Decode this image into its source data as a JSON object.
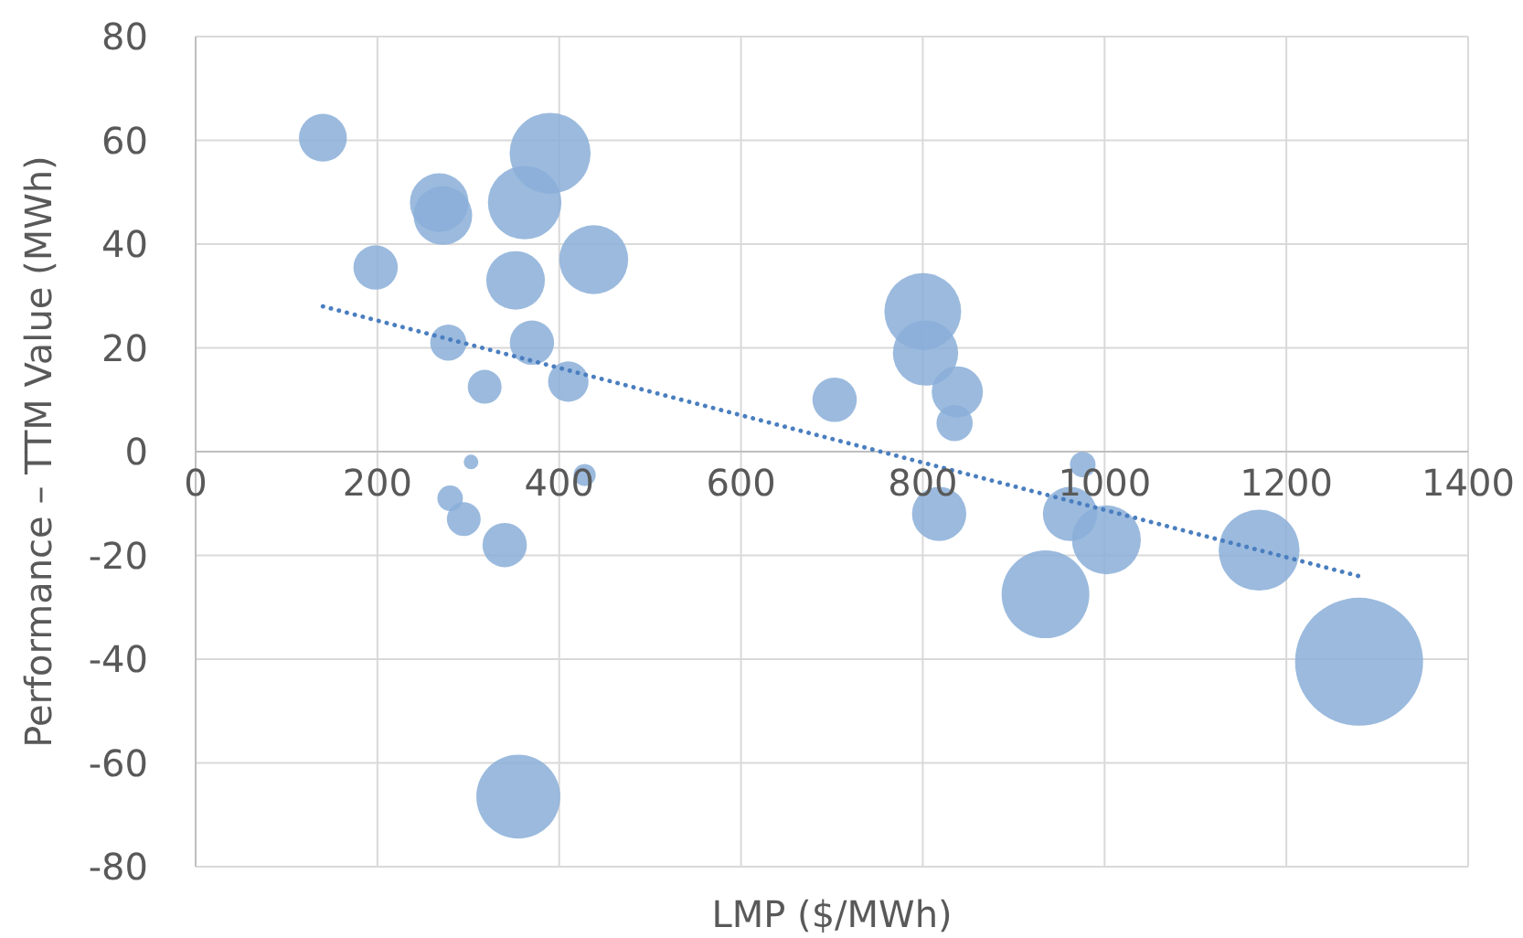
{
  "chart_data": {
    "type": "bubble",
    "xlabel": "LMP ($/MWh)",
    "ylabel": "Performance – TTM Value (MWh)",
    "xlim": [
      0,
      1400
    ],
    "xticks": [
      0,
      200,
      400,
      600,
      800,
      1000,
      1200,
      1400
    ],
    "ylim": [
      -80,
      80
    ],
    "yticks": [
      -80,
      -60,
      -40,
      -20,
      0,
      20,
      40,
      60,
      80
    ],
    "grid": true,
    "series": [
      {
        "color": "#8aaed8",
        "x": [
          140,
          198,
          268,
          272,
          278,
          280,
          295,
          303,
          318,
          340,
          352,
          362,
          370,
          390,
          410,
          428,
          438,
          355,
          703,
          800,
          803,
          818,
          838,
          835,
          935,
          962,
          976,
          1002,
          1170,
          1280
        ],
        "values": [
          60.5,
          35.5,
          48,
          45.5,
          21,
          -9,
          -13,
          -2,
          12.5,
          -18,
          33,
          48,
          21,
          57.5,
          13.5,
          -4.5,
          37,
          -66.5,
          10,
          27,
          19,
          -12,
          11.5,
          5.5,
          -27.5,
          -12,
          -2.5,
          -17,
          -19,
          -40.5
        ],
        "sizes": [
          0.14,
          0.12,
          0.21,
          0.21,
          0.08,
          0.04,
          0.07,
          0.013,
          0.07,
          0.12,
          0.21,
          0.33,
          0.12,
          0.4,
          0.1,
          0.03,
          0.29,
          0.43,
          0.12,
          0.36,
          0.26,
          0.18,
          0.16,
          0.08,
          0.47,
          0.18,
          0.04,
          0.29,
          0.4,
          1
        ]
      },
      {
        "type": "line",
        "color": "#4a7ebf",
        "line_style": "dotted",
        "x": [
          140,
          1280
        ],
        "values": [
          28,
          -24
        ]
      }
    ]
  }
}
